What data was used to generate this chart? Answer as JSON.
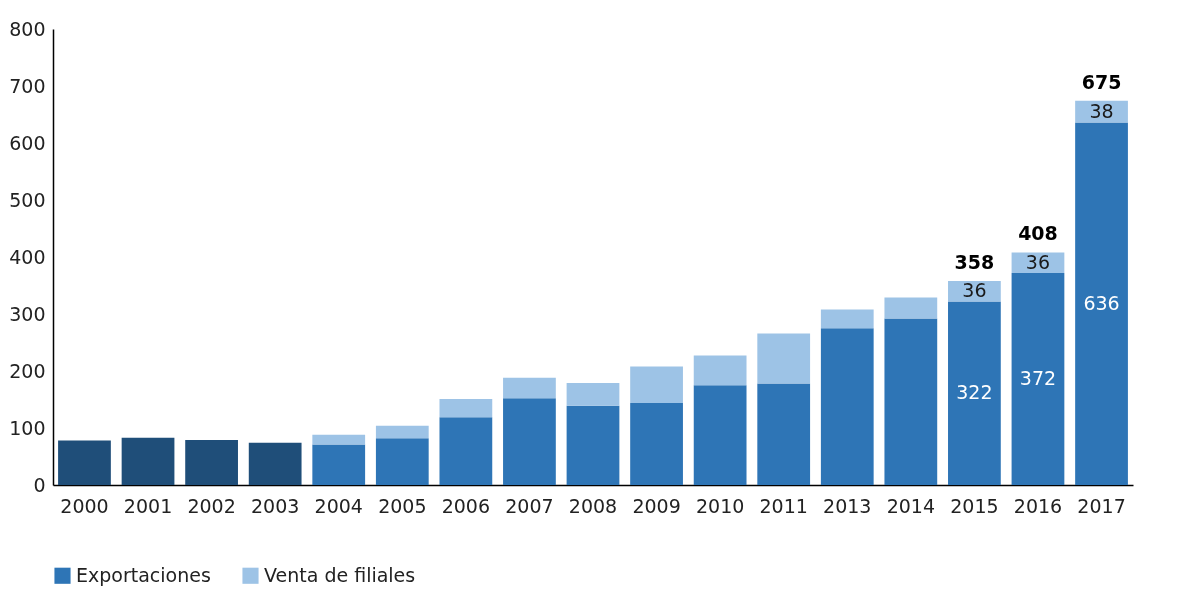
{
  "chart_data": {
    "type": "bar",
    "stacked": true,
    "categories": [
      "2000",
      "2001",
      "2002",
      "2003",
      "2004",
      "2005",
      "2006",
      "2007",
      "2008",
      "2009",
      "2010",
      "2011",
      "2013",
      "2014",
      "2015",
      "2016",
      "2017"
    ],
    "series": [
      {
        "name": "Exportaciones",
        "color": "#2e75b6",
        "colors": [
          "#1f4e79",
          "#1f4e79",
          "#1f4e79",
          "#1f4e79",
          "#2e75b6",
          "#2e75b6",
          "#2e75b6",
          "#2e75b6",
          "#2e75b6",
          "#2e75b6",
          "#2e75b6",
          "#2e75b6",
          "#2e75b6",
          "#2e75b6",
          "#2e75b6",
          "#2e75b6",
          "#2e75b6"
        ],
        "values": [
          78,
          83,
          79,
          74,
          71,
          82,
          119,
          152,
          139,
          144,
          175,
          178,
          275,
          292,
          322,
          372,
          636
        ],
        "value_labels": [
          null,
          null,
          null,
          null,
          null,
          null,
          null,
          null,
          null,
          null,
          null,
          null,
          null,
          null,
          "322",
          "372",
          "636"
        ]
      },
      {
        "name": "Venta de filiales",
        "color": "#9dc3e6",
        "values": [
          null,
          null,
          null,
          null,
          17,
          22,
          32,
          36,
          40,
          64,
          52,
          88,
          33,
          37,
          36,
          36,
          38
        ],
        "value_labels": [
          null,
          null,
          null,
          null,
          null,
          null,
          null,
          null,
          null,
          null,
          null,
          null,
          null,
          null,
          "36",
          "36",
          "38"
        ]
      }
    ],
    "totals": [
      null,
      null,
      null,
      null,
      null,
      null,
      null,
      null,
      null,
      null,
      null,
      null,
      null,
      null,
      "358",
      "408",
      "675"
    ],
    "ylim": [
      0,
      800
    ],
    "yticks": [
      0,
      100,
      200,
      300,
      400,
      500,
      600,
      700,
      800
    ],
    "grid": false,
    "legend": "bottom"
  }
}
